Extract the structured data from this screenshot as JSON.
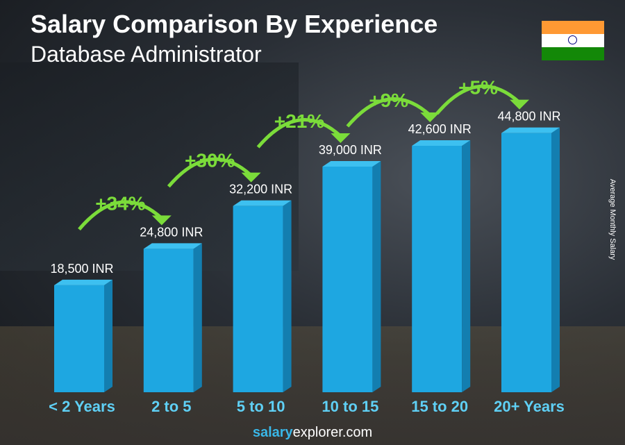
{
  "title": "Salary Comparison By Experience",
  "subtitle": "Database Administrator",
  "y_axis_label": "Average Monthly Salary",
  "footer": {
    "brand_bold": "salary",
    "brand_rest": "explorer.com"
  },
  "flag": {
    "country": "India",
    "colors": [
      "#ff9933",
      "#ffffff",
      "#138808"
    ]
  },
  "colors": {
    "bar": "#1ea7e1",
    "bar_top": "#3dc0f0",
    "bar_side": "#137eb0",
    "increase": "#7bdc3a",
    "category": "#5fd0f5"
  },
  "chart_data": {
    "type": "bar",
    "title": "Salary Comparison By Experience",
    "subtitle": "Database Administrator",
    "ylabel": "Average Monthly Salary",
    "categories": [
      "< 2 Years",
      "2 to 5",
      "5 to 10",
      "10 to 15",
      "15 to 20",
      "20+ Years"
    ],
    "values": [
      18500,
      24800,
      32200,
      39000,
      42600,
      44800
    ],
    "value_labels": [
      "18,500 INR",
      "24,800 INR",
      "32,200 INR",
      "39,000 INR",
      "42,600 INR",
      "44,800 INR"
    ],
    "increases": [
      "+34%",
      "+30%",
      "+21%",
      "+9%",
      "+5%"
    ],
    "unit": "INR",
    "grid": false,
    "legend": "none"
  }
}
